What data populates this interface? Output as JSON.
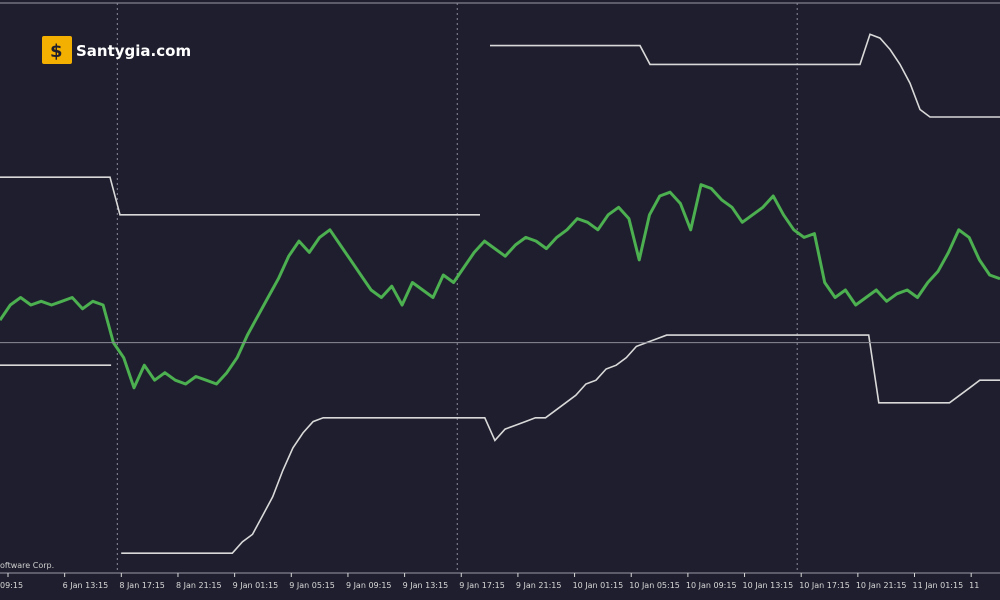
{
  "watermark": {
    "site": "Santygia.com"
  },
  "footer": {
    "copyright": "oftware Corp."
  },
  "colors": {
    "background": "#1e1e2e",
    "price": "#4caf50",
    "envelope": "#d9d9d9",
    "session_separator": "#8a8a9a",
    "axis_text": "#d8d8d8",
    "logo_bg": "#f4b000"
  },
  "chart_data": {
    "type": "line",
    "xlabel": "",
    "ylabel": "",
    "grid": false,
    "x_ticks": [
      "09:15",
      "6 Jan 13:15",
      "8 Jan 17:15",
      "8 Jan 21:15",
      "9 Jan 01:15",
      "9 Jan 05:15",
      "9 Jan 09:15",
      "9 Jan 13:15",
      "9 Jan 17:15",
      "9 Jan 21:15",
      "10 Jan 01:15",
      "10 Jan 05:15",
      "10 Jan 09:15",
      "10 Jan 13:15",
      "10 Jan 17:15",
      "10 Jan 21:15",
      "11 Jan 01:15",
      "11"
    ],
    "session_breaks_at_index": [
      2,
      8,
      14
    ],
    "series": [
      {
        "role": "price",
        "values": [
          0.62,
          0.66,
          0.68,
          0.66,
          0.67,
          0.66,
          0.67,
          0.68,
          0.65,
          0.67,
          0.66,
          0.56,
          0.52,
          0.44,
          0.5,
          0.46,
          0.48,
          0.46,
          0.45,
          0.47,
          0.46,
          0.45,
          0.48,
          0.52,
          0.58,
          0.63,
          0.68,
          0.73,
          0.79,
          0.83,
          0.8,
          0.84,
          0.86,
          0.82,
          0.78,
          0.74,
          0.7,
          0.68,
          0.71,
          0.66,
          0.72,
          0.7,
          0.68,
          0.74,
          0.72,
          0.76,
          0.8,
          0.83,
          0.81,
          0.79,
          0.82,
          0.84,
          0.83,
          0.81,
          0.84,
          0.86,
          0.89,
          0.88,
          0.86,
          0.9,
          0.92,
          0.89,
          0.78,
          0.9,
          0.95,
          0.96,
          0.93,
          0.86,
          0.98,
          0.97,
          0.94,
          0.92,
          0.88,
          0.9,
          0.92,
          0.95,
          0.9,
          0.86,
          0.84,
          0.85,
          0.72,
          0.68,
          0.7,
          0.66,
          0.68,
          0.7,
          0.67,
          0.69,
          0.7,
          0.68,
          0.72,
          0.75,
          0.8,
          0.86,
          0.84,
          0.78,
          0.74,
          0.73
        ]
      },
      {
        "role": "upper_envelope",
        "values": [
          1.0,
          1.0,
          1.0,
          1.0,
          1.0,
          1.0,
          1.0,
          1.0,
          1.0,
          1.0,
          1.0,
          1.0,
          0.9,
          0.9,
          0.9,
          0.9,
          0.9,
          0.9,
          0.9,
          0.9,
          0.9,
          0.9,
          0.9,
          0.9,
          0.9,
          0.9,
          0.9,
          0.9,
          0.9,
          0.9,
          0.9,
          0.9,
          0.9,
          0.9,
          0.9,
          0.9,
          0.9,
          0.9,
          0.9,
          0.9,
          0.9,
          0.9,
          0.9,
          0.9,
          0.9,
          0.9,
          0.9,
          0.9,
          0.9,
          1.35,
          1.35,
          1.35,
          1.35,
          1.35,
          1.35,
          1.35,
          1.35,
          1.35,
          1.35,
          1.35,
          1.35,
          1.35,
          1.35,
          1.35,
          1.35,
          1.3,
          1.3,
          1.3,
          1.3,
          1.3,
          1.3,
          1.3,
          1.3,
          1.3,
          1.3,
          1.3,
          1.3,
          1.3,
          1.3,
          1.3,
          1.3,
          1.3,
          1.3,
          1.3,
          1.3,
          1.3,
          1.3,
          1.38,
          1.37,
          1.34,
          1.3,
          1.25,
          1.18,
          1.16,
          1.16,
          1.16,
          1.16,
          1.16,
          1.16,
          1.16,
          1.16
        ]
      },
      {
        "role": "lower_envelope",
        "values": [
          0.5,
          0.5,
          0.5,
          0.5,
          0.5,
          0.5,
          0.5,
          0.5,
          0.5,
          0.5,
          0.5,
          0.5,
          0.0,
          0.0,
          0.0,
          0.0,
          0.0,
          0.0,
          0.0,
          0.0,
          0.0,
          0.0,
          0.0,
          0.0,
          0.03,
          0.05,
          0.1,
          0.15,
          0.22,
          0.28,
          0.32,
          0.35,
          0.36,
          0.36,
          0.36,
          0.36,
          0.36,
          0.36,
          0.36,
          0.36,
          0.36,
          0.36,
          0.36,
          0.36,
          0.36,
          0.36,
          0.36,
          0.36,
          0.36,
          0.3,
          0.33,
          0.34,
          0.35,
          0.36,
          0.36,
          0.38,
          0.4,
          0.42,
          0.45,
          0.46,
          0.49,
          0.5,
          0.52,
          0.55,
          0.56,
          0.57,
          0.58,
          0.58,
          0.58,
          0.58,
          0.58,
          0.58,
          0.58,
          0.58,
          0.58,
          0.58,
          0.58,
          0.58,
          0.58,
          0.58,
          0.58,
          0.58,
          0.58,
          0.58,
          0.58,
          0.58,
          0.58,
          0.4,
          0.4,
          0.4,
          0.4,
          0.4,
          0.4,
          0.4,
          0.4,
          0.42,
          0.44,
          0.46,
          0.46,
          0.46
        ]
      },
      {
        "role": "reference_level",
        "values": [
          0.56
        ]
      }
    ],
    "ylim": [
      -0.05,
      1.45
    ]
  }
}
